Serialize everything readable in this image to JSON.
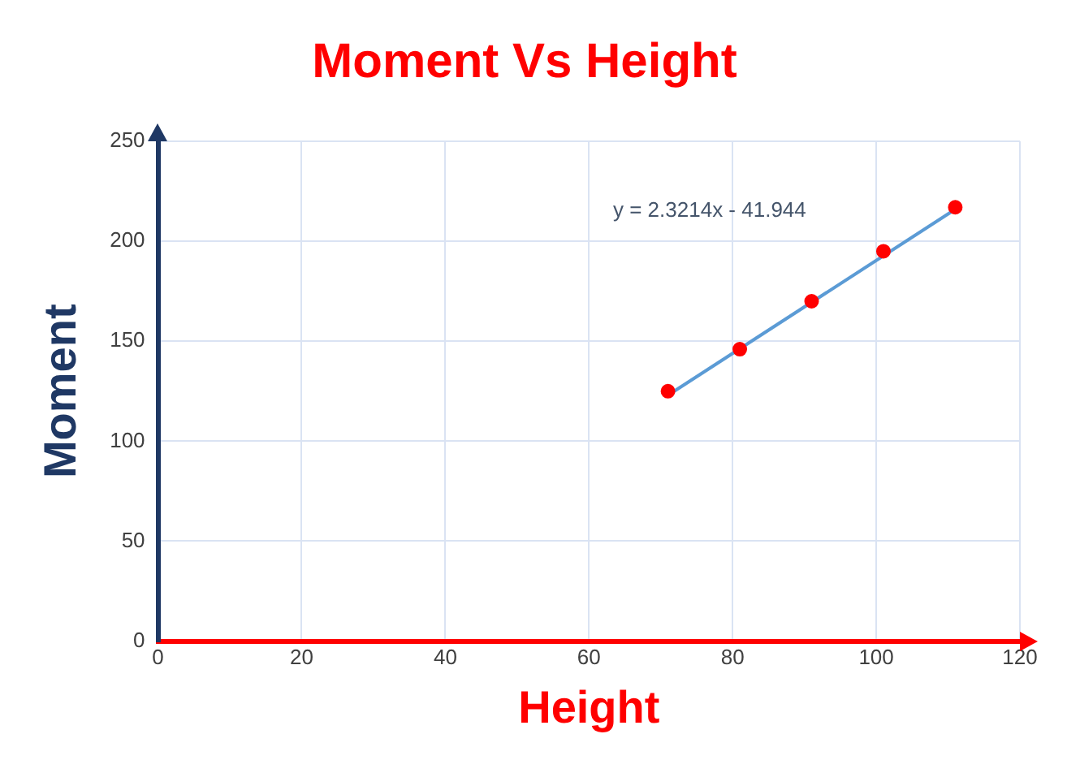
{
  "chart_data": {
    "type": "scatter",
    "title": "Moment Vs Height",
    "xlabel": "Height",
    "ylabel": "Moment",
    "x": [
      71,
      81,
      91,
      101,
      111
    ],
    "series": [
      {
        "color": "#ff0000",
        "marker": "circle",
        "values": [
          125,
          146,
          170,
          195,
          217
        ]
      },
      {
        "type": "line",
        "color": "#5b9bd5",
        "marker": "none",
        "x": [
          71,
          111
        ],
        "values": [
          123,
          216
        ]
      }
    ],
    "annotations": [
      "y = 2.3214x - 41.944"
    ],
    "xlim": [
      0,
      120
    ],
    "xticks": [
      0,
      20,
      40,
      60,
      80,
      100,
      120
    ],
    "ylim": [
      0,
      250
    ],
    "yticks": [
      0,
      50,
      100,
      150,
      200,
      250
    ],
    "grid": true,
    "legend": false
  }
}
